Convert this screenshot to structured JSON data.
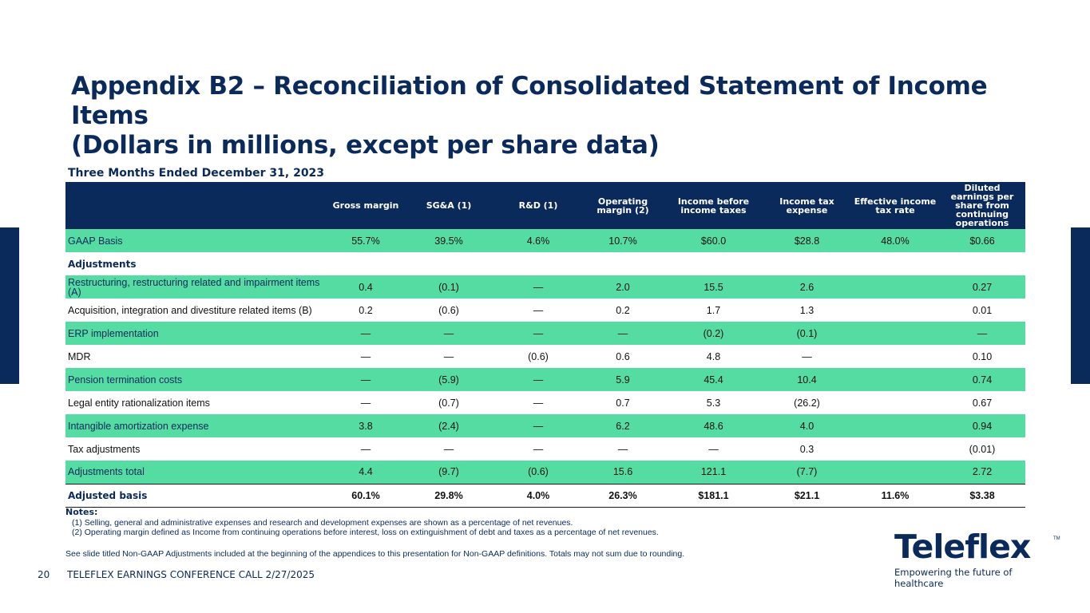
{
  "title": {
    "line1": "Appendix B2 – Reconciliation of Consolidated Statement of Income Items",
    "line2": "(Dollars in millions, except per share data)"
  },
  "period": "Three Months Ended December 31, 2023",
  "table": {
    "headers": [
      "",
      "Gross margin",
      "SG&A (1)",
      "R&D (1)",
      "Operating margin (2)",
      "Income before income taxes",
      "Income tax expense",
      "Effective income tax rate",
      "Diluted earnings per share from continuing operations"
    ],
    "rows": [
      {
        "kind": "hl",
        "label": "GAAP Basis",
        "values": [
          "55.7%",
          "39.5%",
          "4.6%",
          "10.7%",
          "$60.0",
          "$28.8",
          "48.0%",
          "$0.66"
        ]
      },
      {
        "kind": "sect",
        "label": "Adjustments",
        "values": [
          "",
          "",
          "",
          "",
          "",
          "",
          "",
          ""
        ]
      },
      {
        "kind": "hl",
        "label": "Restructuring, restructuring related and impairment items (A)",
        "values": [
          "0.4",
          "(0.1)",
          "—",
          "2.0",
          "15.5",
          "2.6",
          "",
          "0.27"
        ]
      },
      {
        "kind": "plain",
        "label": "Acquisition, integration and divestiture related items (B)",
        "values": [
          "0.2",
          "(0.6)",
          "—",
          "0.2",
          "1.7",
          "1.3",
          "",
          "0.01"
        ]
      },
      {
        "kind": "hl",
        "label": "ERP implementation",
        "values": [
          "—",
          "—",
          "—",
          "—",
          "(0.2)",
          "(0.1)",
          "",
          "—"
        ]
      },
      {
        "kind": "plain",
        "label": "MDR",
        "values": [
          "—",
          "—",
          "(0.6)",
          "0.6",
          "4.8",
          "—",
          "",
          "0.10"
        ]
      },
      {
        "kind": "hl",
        "label": "Pension termination costs",
        "values": [
          "—",
          "(5.9)",
          "—",
          "5.9",
          "45.4",
          "10.4",
          "",
          "0.74"
        ]
      },
      {
        "kind": "plain",
        "label": "Legal entity rationalization items",
        "values": [
          "—",
          "(0.7)",
          "—",
          "0.7",
          "5.3",
          "(26.2)",
          "",
          "0.67"
        ]
      },
      {
        "kind": "hl",
        "label": "Intangible amortization expense",
        "values": [
          "3.8",
          "(2.4)",
          "—",
          "6.2",
          "48.6",
          "4.0",
          "",
          "0.94"
        ]
      },
      {
        "kind": "plain",
        "label": "Tax adjustments",
        "values": [
          "—",
          "—",
          "—",
          "—",
          "—",
          "0.3",
          "",
          "(0.01)"
        ]
      },
      {
        "kind": "hl total",
        "label": "Adjustments total",
        "values": [
          "4.4",
          "(9.7)",
          "(0.6)",
          "15.6",
          "121.1",
          "(7.7)",
          "",
          "2.72"
        ]
      },
      {
        "kind": "adj",
        "label": "Adjusted basis",
        "values": [
          "60.1%",
          "29.8%",
          "4.0%",
          "26.3%",
          "$181.1",
          "$21.1",
          "11.6%",
          "$3.38"
        ]
      }
    ]
  },
  "notes": {
    "heading": "Notes:",
    "items": [
      "(1) Selling, general and administrative expenses and research and development expenses are shown as a percentage of net revenues.",
      "(2) Operating margin defined as Income from continuing operations before interest, loss on extinguishment of debt and taxes as a percentage of net revenues."
    ],
    "footnote": "See slide titled Non-GAAP Adjustments included at the beginning of the appendices to this presentation for Non-GAAP definitions. Totals may not sum due to rounding."
  },
  "footer": {
    "page_number": "20",
    "text": "TELEFLEX EARNINGS CONFERENCE CALL 2/27/2025"
  },
  "logo": {
    "name": "Teleflex",
    "tm": "TM",
    "tagline": "Empowering the future of healthcare"
  },
  "colors": {
    "navy": "#0b2a5c",
    "highlight": "#55dca3"
  }
}
